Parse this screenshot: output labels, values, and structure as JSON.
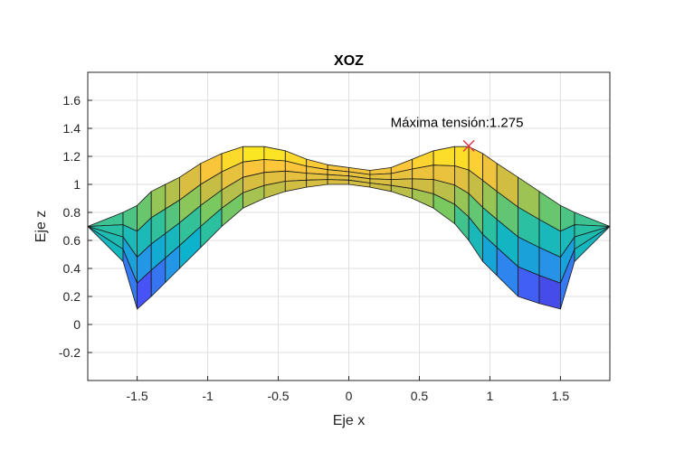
{
  "chart_data": {
    "type": "surface",
    "view": "XOZ",
    "title": "XOZ",
    "xlabel": "Eje x",
    "ylabel": "Eje z",
    "xlim": [
      -1.85,
      1.85
    ],
    "ylim": [
      -0.4,
      1.8
    ],
    "xticks": [
      -1.5,
      -1,
      -0.5,
      0,
      0.5,
      1,
      1.5
    ],
    "xtick_labels": [
      "-1.5",
      "-1",
      "-0.5",
      "0",
      "0.5",
      "1",
      "1.5"
    ],
    "yticks": [
      -0.2,
      0,
      0.2,
      0.4,
      0.6,
      0.8,
      1,
      1.2,
      1.4,
      1.6
    ],
    "ytick_labels": [
      "-0.2",
      "0",
      "0.2",
      "0.4",
      "0.6",
      "0.8",
      "1",
      "1.2",
      "1.4",
      "1.6"
    ],
    "grid": true,
    "x": [
      -1.85,
      -1.6,
      -1.5,
      -1.4,
      -1.3,
      -1.2,
      -1.05,
      -0.9,
      -0.75,
      -0.6,
      -0.45,
      -0.3,
      -0.15,
      0,
      0.15,
      0.3,
      0.45,
      0.6,
      0.75,
      0.85,
      0.95,
      1.05,
      1.2,
      1.35,
      1.5,
      1.6,
      1.85
    ],
    "z_front": [
      0.7,
      0.45,
      0.11,
      0.2,
      0.3,
      0.4,
      0.55,
      0.7,
      0.83,
      0.9,
      0.95,
      0.98,
      1.0,
      1.0,
      0.98,
      0.95,
      0.9,
      0.83,
      0.72,
      0.6,
      0.45,
      0.35,
      0.2,
      0.15,
      0.11,
      0.45,
      0.7
    ],
    "z_back": [
      0.7,
      0.8,
      0.85,
      0.95,
      1.0,
      1.05,
      1.15,
      1.22,
      1.27,
      1.27,
      1.24,
      1.18,
      1.14,
      1.12,
      1.1,
      1.12,
      1.18,
      1.24,
      1.27,
      1.27,
      1.22,
      1.15,
      1.05,
      0.95,
      0.85,
      0.8,
      0.7
    ],
    "colormap": "parula",
    "annotation": {
      "text": "Máxima tensión:1.275",
      "x": 0.85,
      "z": 1.275,
      "marker": "x",
      "marker_color": "#e8334a"
    }
  }
}
